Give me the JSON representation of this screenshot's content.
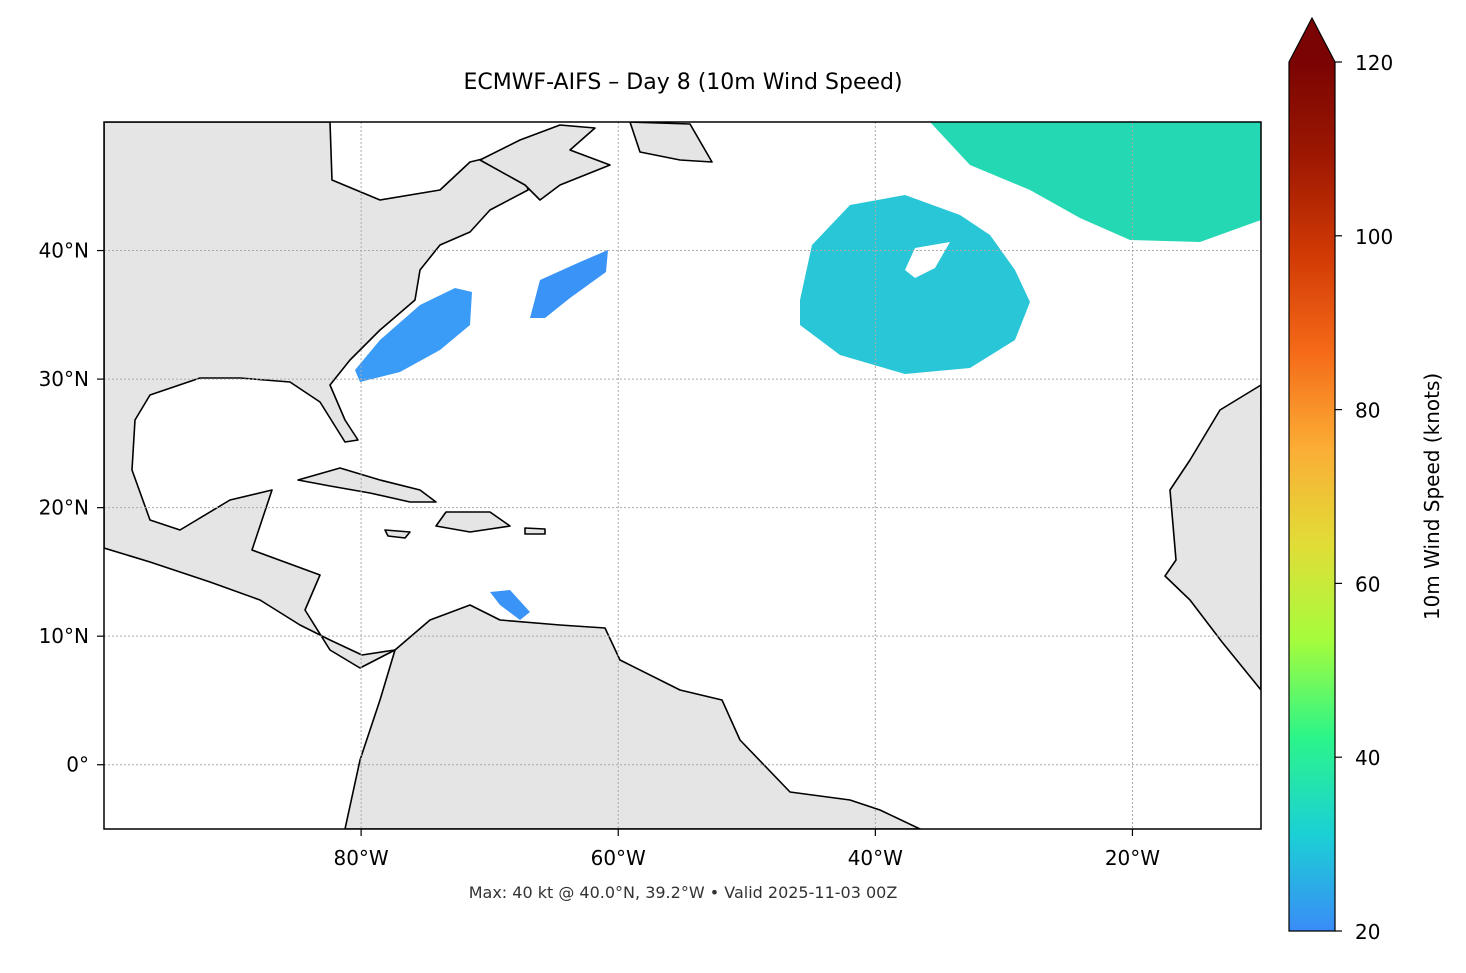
{
  "chart_data": {
    "type": "map",
    "title": "ECMWF-AIFS – Day 8 (10m Wind Speed)",
    "footnote": "Max: 40 kt @ 40.0°N, 39.2°W • Valid 2025-11-03 00Z",
    "xlim": [
      -100,
      -10
    ],
    "ylim": [
      -5,
      50
    ],
    "xticks": [
      {
        "value": -80,
        "label": "80°W"
      },
      {
        "value": -60,
        "label": "60°W"
      },
      {
        "value": -40,
        "label": "40°W"
      },
      {
        "value": -20,
        "label": "20°W"
      }
    ],
    "yticks": [
      {
        "value": 0,
        "label": "0°"
      },
      {
        "value": 10,
        "label": "10°N"
      },
      {
        "value": 20,
        "label": "20°N"
      },
      {
        "value": 30,
        "label": "30°N"
      },
      {
        "value": 40,
        "label": "40°N"
      }
    ],
    "grid": true,
    "colorbar": {
      "label": "10m Wind Speed (knots)",
      "lim": [
        20,
        120
      ],
      "ticks": [
        20,
        40,
        60,
        80,
        100,
        120
      ],
      "extend": "max",
      "colors": [
        "#3a8cf7",
        "#1bd0d5",
        "#2bf58a",
        "#a4fc3c",
        "#e1dd37",
        "#fbad35",
        "#f56a18",
        "#d13a05",
        "#9e1801",
        "#7a0403"
      ]
    }
  }
}
